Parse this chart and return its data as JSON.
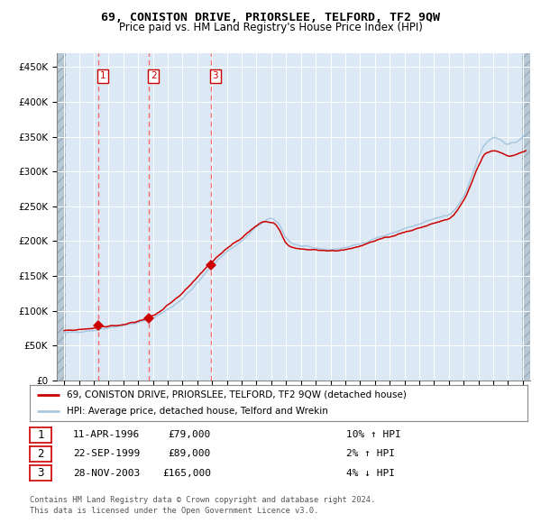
{
  "title": "69, CONISTON DRIVE, PRIORSLEE, TELFORD, TF2 9QW",
  "subtitle": "Price paid vs. HM Land Registry's House Price Index (HPI)",
  "legend_line1": "69, CONISTON DRIVE, PRIORSLEE, TELFORD, TF2 9QW (detached house)",
  "legend_line2": "HPI: Average price, detached house, Telford and Wrekin",
  "red_color": "#cc0000",
  "blue_color": "#a8c8e0",
  "bg_color": "#dce8f4",
  "hatch_color": "#b8c8d4",
  "grid_color": "#ffffff",
  "dashed_color": "#ff5555",
  "sales": [
    {
      "num": 1,
      "date": "11-APR-1996",
      "x": 1996.28,
      "price": 79000,
      "hpi_pct": "10% ↑ HPI"
    },
    {
      "num": 2,
      "date": "22-SEP-1999",
      "x": 1999.72,
      "price": 89000,
      "hpi_pct": "2% ↑ HPI"
    },
    {
      "num": 3,
      "date": "28-NOV-2003",
      "x": 2003.9,
      "price": 165000,
      "hpi_pct": "4% ↓ HPI"
    }
  ],
  "footer": "Contains HM Land Registry data © Crown copyright and database right 2024.\nThis data is licensed under the Open Government Licence v3.0.",
  "ylim": [
    0,
    470000
  ],
  "xlim": [
    1993.5,
    2025.5
  ],
  "yticks": [
    0,
    50000,
    100000,
    150000,
    200000,
    250000,
    300000,
    350000,
    400000,
    450000
  ],
  "ylabels": [
    "£0",
    "£50K",
    "£100K",
    "£150K",
    "£200K",
    "£250K",
    "£300K",
    "£350K",
    "£400K",
    "£450K"
  ]
}
